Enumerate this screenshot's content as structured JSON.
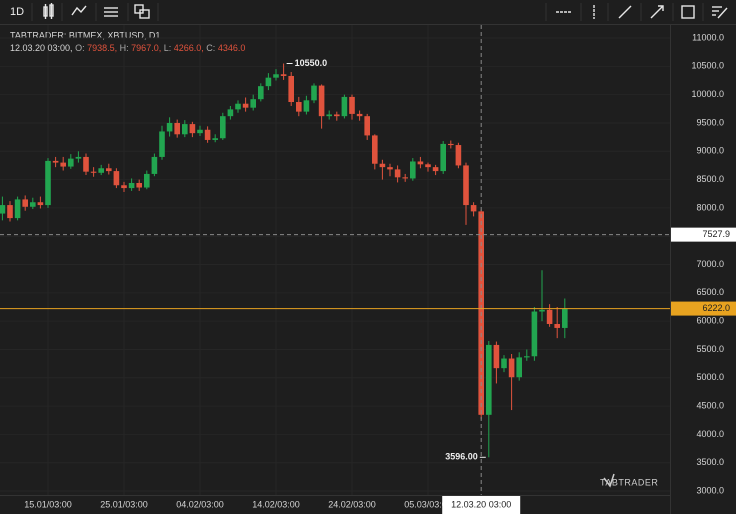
{
  "toolbar": {
    "interval": "1D"
  },
  "chart_data": {
    "type": "candlestick",
    "legend_title": "TABTRADER: BITMEX, XBTUSD, D1",
    "legend_time": "12.03.20 03:00,",
    "legend_items": [
      {
        "name": "O:",
        "label": "7938.5,"
      },
      {
        "name": "H:",
        "label": "7967.0,"
      },
      {
        "name": "L:",
        "label": "4266.0,"
      },
      {
        "name": "C:",
        "label": "4346.0"
      }
    ],
    "watermark": "TABTRADER",
    "categories": [
      null,
      null,
      null,
      null,
      null,
      null,
      "15.01/03:00",
      null,
      null,
      null,
      null,
      null,
      null,
      null,
      null,
      null,
      "25.01/03:00",
      null,
      null,
      null,
      null,
      null,
      null,
      null,
      null,
      null,
      "04.02/03:00",
      null,
      null,
      null,
      null,
      null,
      null,
      null,
      null,
      null,
      "14.02/03:00",
      null,
      null,
      null,
      null,
      null,
      null,
      null,
      null,
      null,
      "24.02/03:00",
      null,
      null,
      null,
      null,
      null,
      null,
      null,
      null,
      null,
      "05.03/03:00",
      null,
      null,
      null,
      null,
      null,
      null,
      "12.03.20 03:00",
      null,
      null,
      null,
      null,
      null,
      null,
      null,
      null,
      null,
      null,
      null
    ],
    "open": [
      7900,
      8050,
      7820,
      8150,
      8020,
      8100,
      8050,
      8830,
      8800,
      8730,
      8870,
      8900,
      8640,
      8620,
      8700,
      8650,
      8400,
      8350,
      8440,
      8360,
      8600,
      8900,
      9350,
      9500,
      9300,
      9480,
      9320,
      9380,
      9200,
      9230,
      9620,
      9740,
      9840,
      9770,
      9920,
      10150,
      10300,
      10360,
      10330,
      9870,
      9700,
      9900,
      10160,
      9620,
      9650,
      9620,
      9960,
      9660,
      9620,
      9280,
      8780,
      8720,
      8680,
      8540,
      8520,
      8820,
      8770,
      8720,
      8650,
      9130,
      9110,
      8750,
      8050,
      7938.5,
      4346,
      5580,
      5170,
      5340,
      5010,
      5360,
      5380,
      6170,
      6200,
      5950,
      5880
    ],
    "high": [
      8200,
      8120,
      8200,
      8220,
      8180,
      8200,
      8880,
      8900,
      8900,
      8950,
      9000,
      8960,
      8720,
      8760,
      8780,
      8700,
      8460,
      8520,
      8500,
      8660,
      8960,
      9450,
      9600,
      9560,
      9550,
      9520,
      9450,
      9440,
      9300,
      9680,
      9800,
      9900,
      9950,
      10000,
      10200,
      10380,
      10450,
      10550,
      10400,
      9960,
      9980,
      10200,
      10180,
      9720,
      9700,
      10000,
      10000,
      9720,
      9660,
      9300,
      8850,
      8780,
      8750,
      8600,
      8880,
      8900,
      8800,
      8760,
      9180,
      9190,
      9150,
      8800,
      8100,
      7967,
      5650,
      5640,
      5400,
      5420,
      5450,
      5500,
      6250,
      6900,
      6300,
      6250,
      6400
    ],
    "low": [
      7780,
      7760,
      7780,
      7950,
      7980,
      7990,
      8000,
      8720,
      8660,
      8690,
      8800,
      8580,
      8550,
      8580,
      8590,
      8350,
      8280,
      8300,
      8300,
      8330,
      8560,
      8850,
      9260,
      9240,
      9250,
      9250,
      9270,
      9150,
      9160,
      9200,
      9560,
      9680,
      9700,
      9720,
      9880,
      10080,
      10250,
      10260,
      9800,
      9620,
      9650,
      9850,
      9400,
      9560,
      9540,
      9580,
      9560,
      9540,
      9200,
      8680,
      8500,
      8560,
      8450,
      8460,
      8480,
      8700,
      8640,
      8580,
      8600,
      9050,
      8700,
      7700,
      7850,
      4266,
      3596,
      4900,
      5100,
      4430,
      4950,
      5300,
      5300,
      6000,
      5900,
      5700,
      5700
    ],
    "close": [
      8050,
      7820,
      8150,
      8020,
      8100,
      8050,
      8830,
      8800,
      8730,
      8870,
      8900,
      8640,
      8620,
      8700,
      8650,
      8400,
      8350,
      8440,
      8360,
      8600,
      8900,
      9350,
      9500,
      9300,
      9480,
      9320,
      9380,
      9200,
      9230,
      9620,
      9740,
      9840,
      9770,
      9920,
      10150,
      10300,
      10360,
      10330,
      9870,
      9700,
      9900,
      10160,
      9620,
      9650,
      9620,
      9960,
      9660,
      9620,
      9280,
      8780,
      8720,
      8680,
      8540,
      8520,
      8820,
      8770,
      8720,
      8650,
      9130,
      9110,
      8750,
      8050,
      7938.5,
      4346,
      5580,
      5170,
      5340,
      5010,
      5360,
      5380,
      6170,
      6200,
      5950,
      5880,
      6222
    ],
    "up_color": "#22a650",
    "down_color": "#e0533d",
    "max_label": "10550.0",
    "min_label": "3596.00",
    "last_price_label": "6222.0",
    "last_price_color": "#e8a320",
    "crosshair": {
      "category": 63,
      "price": {
        "value": 7527.9,
        "label": "7527.9"
      }
    },
    "ylim": [
      2930,
      11230
    ],
    "yticks": [
      {
        "value": 3000,
        "label": "3000.0"
      },
      {
        "value": 3500,
        "label": "3500.0"
      },
      {
        "value": 4000,
        "label": "4000.0"
      },
      {
        "value": 4500,
        "label": "4500.0"
      },
      {
        "value": 5000,
        "label": "5000.0"
      },
      {
        "value": 5500,
        "label": "5500.0"
      },
      {
        "value": 6000,
        "label": "6000.0"
      },
      {
        "value": 6500,
        "label": "6500.0"
      },
      {
        "value": 7000,
        "label": "7000.0"
      },
      {
        "value": 7500,
        "label": "7500.0"
      },
      {
        "value": 8000,
        "label": "8000.0"
      },
      {
        "value": 8500,
        "label": "8500.0"
      },
      {
        "value": 9000,
        "label": "9000.0"
      },
      {
        "value": 9500,
        "label": "9500.0"
      },
      {
        "value": 10000,
        "label": "10000.0"
      },
      {
        "value": 10500,
        "label": "10500.0"
      },
      {
        "value": 11000,
        "label": "11000.0"
      }
    ],
    "grid": true
  }
}
